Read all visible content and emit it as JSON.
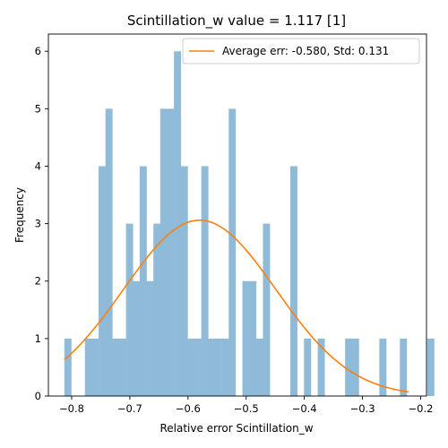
{
  "chart_data": {
    "type": "bar",
    "title": "Scintillation_w value = 1.117 [1]",
    "xlabel": "Relative error Scintillation_w",
    "ylabel": "Frequency",
    "xlim": [
      -0.84,
      -0.19
    ],
    "ylim": [
      0,
      6.3
    ],
    "xticks": [
      -0.8,
      -0.7,
      -0.6,
      -0.5,
      -0.4,
      -0.3,
      -0.2
    ],
    "xtick_labels": [
      "−0.8",
      "−0.7",
      "−0.6",
      "−0.5",
      "−0.4",
      "−0.3",
      "−0.2"
    ],
    "yticks": [
      0,
      1,
      2,
      3,
      4,
      5,
      6
    ],
    "ytick_labels": [
      "0",
      "1",
      "2",
      "3",
      "4",
      "5",
      "6"
    ],
    "histogram": {
      "color": "#8fbbd9",
      "bin_start": -0.8125,
      "bin_width": 0.01177,
      "counts": [
        1,
        0,
        0,
        1,
        1,
        4,
        5,
        1,
        1,
        3,
        2,
        4,
        2,
        3,
        5,
        5,
        6,
        4,
        1,
        1,
        4,
        1,
        1,
        1,
        5,
        0,
        2,
        2,
        1,
        3,
        0,
        0,
        0,
        4,
        0,
        1,
        0,
        1,
        0,
        0,
        0,
        1,
        1,
        0,
        0,
        0,
        1,
        0,
        0,
        1,
        0,
        0,
        0,
        1
      ]
    },
    "fit_curve": {
      "name": "Average err: -0.580, Std: 0.131",
      "color": "#ff7f0e",
      "mean": -0.58,
      "std": 0.131,
      "peak": 3.06,
      "x_range": [
        -0.8125,
        -0.2205
      ]
    },
    "legend": {
      "position": "top-right"
    },
    "grid": false
  }
}
